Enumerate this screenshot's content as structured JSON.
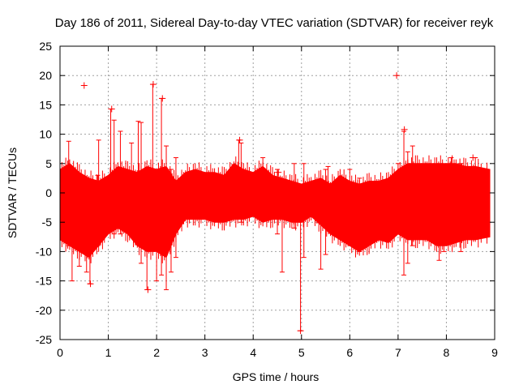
{
  "chart_data": {
    "type": "scatter",
    "title": "Day 186 of 2011, Sidereal Day-to-day VTEC variation (SDTVAR) for receiver reyk",
    "xlabel": "GPS time / hours",
    "ylabel": "SDTVAR / TECUs",
    "xlim": [
      0,
      9
    ],
    "ylim": [
      -25,
      25
    ],
    "xticks": [
      "0",
      "1",
      "2",
      "3",
      "4",
      "5",
      "6",
      "7",
      "8",
      "9"
    ],
    "yticks": [
      "25",
      "20",
      "15",
      "10",
      "5",
      "0",
      "-5",
      "-10",
      "-15",
      "-20",
      "-25"
    ],
    "grid": true,
    "series_color": "#ff0000",
    "marker": "plus",
    "envelope": {
      "x": [
        0.0,
        0.2,
        0.4,
        0.6,
        0.8,
        1.0,
        1.2,
        1.4,
        1.6,
        1.8,
        2.0,
        2.2,
        2.4,
        2.6,
        2.8,
        3.0,
        3.2,
        3.4,
        3.6,
        3.8,
        4.0,
        4.2,
        4.4,
        4.6,
        4.8,
        5.0,
        5.2,
        5.4,
        5.6,
        5.8,
        6.0,
        6.2,
        6.4,
        6.6,
        6.8,
        7.0,
        7.2,
        7.4,
        7.6,
        7.8,
        8.0,
        8.2,
        8.4,
        8.6,
        8.9
      ],
      "upper": [
        4.0,
        5.0,
        3.5,
        2.5,
        2.0,
        3.0,
        4.5,
        4.0,
        3.5,
        4.5,
        4.0,
        4.5,
        2.0,
        3.5,
        4.0,
        3.5,
        3.5,
        3.0,
        5.0,
        4.0,
        3.5,
        4.5,
        3.0,
        2.5,
        2.0,
        1.5,
        2.0,
        2.5,
        1.5,
        3.0,
        2.0,
        1.5,
        2.0,
        2.0,
        2.5,
        4.0,
        5.0,
        5.0,
        5.0,
        5.0,
        5.0,
        5.0,
        4.5,
        4.5,
        4.0
      ],
      "lower": [
        -8.0,
        -9.0,
        -10.0,
        -11.0,
        -9.0,
        -7.0,
        -6.0,
        -7.0,
        -9.0,
        -10.0,
        -10.0,
        -11.0,
        -7.0,
        -4.5,
        -4.5,
        -4.5,
        -5.0,
        -5.0,
        -4.5,
        -4.5,
        -4.0,
        -5.0,
        -4.5,
        -4.5,
        -5.0,
        -5.0,
        -4.0,
        -5.5,
        -7.0,
        -8.0,
        -9.0,
        -10.0,
        -9.0,
        -8.0,
        -8.5,
        -7.0,
        -8.0,
        -8.0,
        -8.0,
        -9.0,
        -9.0,
        -8.5,
        -8.0,
        -8.0,
        -7.5
      ]
    },
    "error_bars": [
      {
        "x": 0.18,
        "y": 2.0,
        "low": -9.0,
        "high": 8.8
      },
      {
        "x": 0.25,
        "y": -3.0,
        "low": -15.0,
        "high": 2.0
      },
      {
        "x": 0.4,
        "y": -2.0,
        "low": -12.5,
        "high": 2.0
      },
      {
        "x": 0.55,
        "y": -3.0,
        "low": -13.5,
        "high": 2.0
      },
      {
        "x": 0.62,
        "y": -3.0,
        "low": -15.5,
        "high": 1.0
      },
      {
        "x": 0.78,
        "y": -1.0,
        "low": -9.0,
        "high": 3.0
      },
      {
        "x": 0.8,
        "y": -2.0,
        "low": -8.0,
        "high": 9.0
      },
      {
        "x": 1.05,
        "y": 2.0,
        "low": -4.0,
        "high": 14.3
      },
      {
        "x": 1.12,
        "y": 1.0,
        "low": -7.0,
        "high": 12.4
      },
      {
        "x": 1.25,
        "y": 2.0,
        "low": -7.0,
        "high": 10.5
      },
      {
        "x": 1.48,
        "y": 0.0,
        "low": -7.0,
        "high": 8.5
      },
      {
        "x": 1.62,
        "y": 1.0,
        "low": -7.0,
        "high": 12.2
      },
      {
        "x": 1.68,
        "y": 1.0,
        "low": -12.0,
        "high": 12.0
      },
      {
        "x": 1.8,
        "y": -2.0,
        "low": -16.5,
        "high": 3.0
      },
      {
        "x": 1.92,
        "y": 2.0,
        "low": -9.0,
        "high": 18.5
      },
      {
        "x": 2.0,
        "y": 1.0,
        "low": -15.0,
        "high": 4.0
      },
      {
        "x": 2.1,
        "y": 2.0,
        "low": -14.0,
        "high": 16.1
      },
      {
        "x": 2.2,
        "y": -2.0,
        "low": -16.5,
        "high": 8.0
      },
      {
        "x": 2.3,
        "y": -2.0,
        "low": -13.5,
        "high": 4.0
      },
      {
        "x": 2.4,
        "y": -2.0,
        "low": -11.0,
        "high": 6.0
      },
      {
        "x": 3.7,
        "y": 1.0,
        "low": -3.0,
        "high": 9.0
      },
      {
        "x": 3.75,
        "y": 1.0,
        "low": -5.0,
        "high": 8.5
      },
      {
        "x": 4.2,
        "y": -1.0,
        "low": -4.0,
        "high": 6.0
      },
      {
        "x": 4.5,
        "y": -1.0,
        "low": -7.0,
        "high": 4.0
      },
      {
        "x": 4.6,
        "y": -2.0,
        "low": -13.5,
        "high": 2.0
      },
      {
        "x": 4.85,
        "y": -2.0,
        "low": -6.0,
        "high": 5.0
      },
      {
        "x": 4.98,
        "y": -3.0,
        "low": -23.5,
        "high": -5.0
      },
      {
        "x": 5.05,
        "y": -2.0,
        "low": -11.0,
        "high": 5.0
      },
      {
        "x": 5.4,
        "y": -2.0,
        "low": -13.0,
        "high": 2.0
      },
      {
        "x": 5.5,
        "y": -3.0,
        "low": -10.5,
        "high": 4.0
      },
      {
        "x": 5.55,
        "y": 0.0,
        "low": -3.0,
        "high": 4.5
      },
      {
        "x": 6.0,
        "y": -2.0,
        "low": -9.0,
        "high": 4.0
      },
      {
        "x": 6.2,
        "y": 0.0,
        "low": -10.0,
        "high": 2.5
      },
      {
        "x": 7.0,
        "y": 0.0,
        "low": -4.0,
        "high": 5.0
      },
      {
        "x": 7.12,
        "y": 2.0,
        "low": -14.0,
        "high": 10.5
      },
      {
        "x": 7.2,
        "y": 2.0,
        "low": -12.0,
        "high": 7.0
      },
      {
        "x": 7.3,
        "y": 1.0,
        "low": -9.0,
        "high": 8.0
      },
      {
        "x": 7.85,
        "y": -3.0,
        "low": -11.5,
        "high": 4.0
      },
      {
        "x": 7.95,
        "y": -3.0,
        "low": -10.0,
        "high": 4.0
      },
      {
        "x": 8.1,
        "y": 1.0,
        "low": -6.0,
        "high": 6.0
      },
      {
        "x": 8.3,
        "y": -3.0,
        "low": -10.0,
        "high": 5.0
      },
      {
        "x": 8.6,
        "y": 1.0,
        "low": -6.0,
        "high": 6.0
      }
    ],
    "outliers": [
      {
        "x": 0.5,
        "y": 18.3
      },
      {
        "x": 6.97,
        "y": 20.0
      },
      {
        "x": 1.07,
        "y": 14.3
      },
      {
        "x": 1.93,
        "y": 18.5
      },
      {
        "x": 2.12,
        "y": 16.1
      },
      {
        "x": 4.98,
        "y": -23.5
      },
      {
        "x": 0.63,
        "y": -15.5
      },
      {
        "x": 1.82,
        "y": -16.5
      },
      {
        "x": 7.13,
        "y": 10.8
      },
      {
        "x": 8.55,
        "y": 6.0
      },
      {
        "x": 4.52,
        "y": 3.5
      },
      {
        "x": 3.72,
        "y": 9.0
      }
    ]
  }
}
